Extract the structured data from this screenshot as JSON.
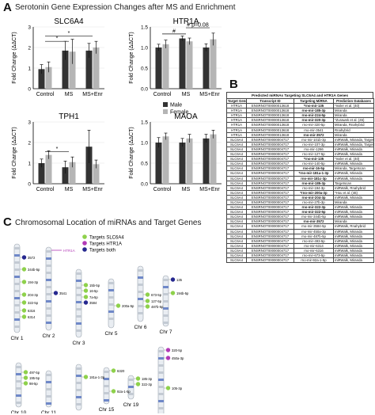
{
  "panel_a": {
    "letter": "A",
    "title": "Serotonin Gene Expression Changes after  MS and Enrichment",
    "ylabel": "Fold Change (ΔΔCT)",
    "legend": {
      "male": "Male",
      "female": "Female"
    },
    "male_color": "#333333",
    "female_color": "#b5b5b5",
    "charts": [
      {
        "title": "SLC6A4",
        "categories": [
          "Control",
          "MS",
          "MS+Enr"
        ],
        "ylim": [
          0,
          3
        ],
        "yticks": [
          "0",
          "1",
          "2",
          "3"
        ],
        "series": [
          {
            "name": "Male",
            "values": [
              0.95,
              1.85,
              1.85
            ],
            "errors": [
              0.22,
              0.45,
              0.35
            ]
          },
          {
            "name": "Female",
            "values": [
              1.05,
              1.8,
              2.0
            ],
            "errors": [
              0.25,
              0.6,
              0.3
            ]
          }
        ],
        "sig": [
          {
            "label": "*",
            "from": 0,
            "to": 1,
            "level": 2.3
          },
          {
            "label": "*",
            "from": 0,
            "to": 2,
            "level": 2.55
          }
        ]
      },
      {
        "title": "HTR1A",
        "categories": [
          "Control",
          "MS",
          "MS+Enr"
        ],
        "ylim": [
          0,
          1.5
        ],
        "yticks": [
          "0.0",
          "0.5",
          "1.0",
          "1.5"
        ],
        "series": [
          {
            "name": "Male",
            "values": [
              1.0,
              1.22,
              1.0
            ],
            "errors": [
              0.08,
              0.06,
              0.09
            ]
          },
          {
            "name": "Female",
            "values": [
              1.08,
              1.15,
              1.2
            ],
            "errors": [
              0.1,
              0.08,
              0.15
            ]
          }
        ],
        "sig": [
          {
            "label": "#",
            "from": 0,
            "to": 1,
            "level": 1.33
          },
          {
            "label": "# p=0.08",
            "from": 1,
            "to": 2,
            "level": 1.48
          }
        ]
      },
      {
        "title": "TPH1",
        "categories": [
          "Control",
          "MS",
          "MS+Enr"
        ],
        "ylim": [
          0,
          3
        ],
        "yticks": [
          "0",
          "1",
          "2",
          "3"
        ],
        "series": [
          {
            "name": "Male",
            "values": [
              1.0,
              0.8,
              1.8
            ],
            "errors": [
              0.2,
              0.3,
              0.8
            ]
          },
          {
            "name": "Female",
            "values": [
              1.4,
              1.05,
              0.95
            ],
            "errors": [
              0.2,
              0.25,
              0.2
            ]
          }
        ],
        "sig": [
          {
            "label": "*",
            "from": 0,
            "to": 1,
            "level": 1.55
          }
        ]
      },
      {
        "title": "MAOA",
        "categories": [
          "Control",
          "MS",
          "MS+Enr"
        ],
        "ylim": [
          0,
          1.5
        ],
        "yticks": [
          "0.0",
          "0.5",
          "1.0",
          "1.5"
        ],
        "series": [
          {
            "name": "Male",
            "values": [
              1.0,
              1.0,
              1.1
            ],
            "errors": [
              0.12,
              0.1,
              0.1
            ]
          },
          {
            "name": "Female",
            "values": [
              1.15,
              1.1,
              1.2
            ],
            "errors": [
              0.08,
              0.1,
              0.1
            ]
          }
        ],
        "sig": []
      }
    ]
  },
  "panel_b": {
    "letter": "B",
    "table_title": "Predicted miRNAs Targeting SLC6A4 and HTR1A Genes",
    "headers": [
      "Target Gene",
      "Transcript ID",
      "Targeting MiRNA",
      "Prediction Databases"
    ],
    "rows": [
      [
        "HTR1A",
        "ENSRNOT00000013618",
        "*rno-mir-135",
        "*Issler et al. (40)"
      ],
      [
        "HTR1A",
        "ENSRNOT00000013618",
        "rno-mir-185-3p",
        "Miranda"
      ],
      [
        "HTR1A",
        "ENSRNOT00000013618",
        "rno-mir-224-5p",
        "Miranda"
      ],
      [
        "HTR1A",
        "ENSRNOT00000013618",
        "rno-mir-320-3p",
        "*Zurawek et al. (45)"
      ],
      [
        "HTR1A",
        "ENSRNOT00000013618",
        "rno-mir-320-5p",
        "Miranda, Rnahybrid"
      ],
      [
        "HTR1A",
        "ENSRNOT00000013618",
        "rno-mir-3541",
        "Rnahybrid"
      ],
      [
        "HTR1A",
        "ENSRNOT00000013618",
        "rno-mir-3572",
        "Miranda"
      ],
      [
        "SLC6A4",
        "ENSRNOT00000004717",
        "rno-mir-101b-3p",
        "miRWalk, Miranda, Targetscan"
      ],
      [
        "SLC6A4",
        "ENSRNOT00000004717",
        "rno-mir-107-3p",
        "miRWalk, Miranda, Targetscan"
      ],
      [
        "SLC6A4",
        "ENSRNOT00000004717",
        "rno-mir-1266",
        "miRWalk, Miranda"
      ],
      [
        "SLC6A4",
        "ENSRNOT00000004717",
        "rno-mir-127-5p",
        "miRWalk, Miranda"
      ],
      [
        "SLC6A4",
        "ENSRNOT00000004717",
        "*rno-mir-135",
        "*Issler et al. (40)"
      ],
      [
        "SLC6A4",
        "ENSRNOT00000004717",
        "rno-mir-140-5p",
        "miRWalk, Miranda"
      ],
      [
        "SLC6A4",
        "ENSRNOT00000004717",
        "rno-mir-16-5p",
        "Miranda, Targetscan"
      ],
      [
        "SLC6A4",
        "ENSRNOT00000004717",
        "*rno-mir-181a-1-3p",
        "miRWalk, Miranda"
      ],
      [
        "SLC6A4",
        "ENSRNOT00000004717",
        "rno-mir-181c-3p",
        "miRWalk, Miranda"
      ],
      [
        "SLC6A4",
        "ENSRNOT00000004717",
        "rno-mir-185-3p",
        "Targetscan"
      ],
      [
        "SLC6A4",
        "ENSRNOT00000004717",
        "rno-mir-194-3p",
        "miRWalk, Rnahybrid"
      ],
      [
        "SLC6A4",
        "ENSRNOT00000004717",
        "*rno-mir-200a-3p",
        "*Hou et al. (46)"
      ],
      [
        "SLC6A4",
        "ENSRNOT00000004717",
        "rno-mir-204-3p",
        "miRWalk, Miranda"
      ],
      [
        "SLC6A4",
        "ENSRNOT00000004717",
        "rno-mir-27b-3p",
        "Miranda"
      ],
      [
        "SLC6A4",
        "ENSRNOT00000004717",
        "rno-mir-322-3p",
        "miRWalk, Miranda"
      ],
      [
        "SLC6A4",
        "ENSRNOT00000004717",
        "rno-mir-322-5p",
        "miRWalk, Miranda"
      ],
      [
        "SLC6A4",
        "ENSRNOT00000004717",
        "rno-mir-344b-5p",
        "miRWalk, Miranda"
      ],
      [
        "SLC6A4",
        "ENSRNOT00000004717",
        "rno-mir-3572",
        "Miranda"
      ],
      [
        "SLC6A4",
        "ENSRNOT00000004717",
        "rno-mir-3584-5p",
        "miRWalk, Rnahybrid"
      ],
      [
        "SLC6A4",
        "ENSRNOT00000004717",
        "rno-mir-450a-3p",
        "miRWalk, Miranda"
      ],
      [
        "SLC6A4",
        "ENSRNOT00000004717",
        "rno-mir-487b-5p",
        "miRWalk, Miranda"
      ],
      [
        "SLC6A4",
        "ENSRNOT00000004717",
        "rno-mir-493-5p",
        "miRWalk, Miranda"
      ],
      [
        "SLC6A4",
        "ENSRNOT00000004717",
        "rno-mir-6314",
        "miRWalk, Miranda"
      ],
      [
        "SLC6A4",
        "ENSRNOT00000004717",
        "rno-mir-6316",
        "miRWalk, Miranda"
      ],
      [
        "SLC6A4",
        "ENSRNOT00000004717",
        "rno-mir-673-5p",
        "miRWalk, Miranda"
      ],
      [
        "SLC6A4",
        "ENSRNOT00000004717",
        "rno-mir-92a-1-5p",
        "miRWalk, Miranda"
      ]
    ]
  },
  "panel_c": {
    "letter": "C",
    "title": "Chromosomal Location of miRNAs and Target Genes",
    "legend": [
      {
        "label": "Targets SLC6A4",
        "color": "#8ed14b"
      },
      {
        "label": "Targets HTR1A",
        "color": "#b23ab7"
      },
      {
        "label": "Targets both",
        "color": "#26288f"
      }
    ],
    "chromosomes": [
      "Chr 1",
      "Chr 2",
      "Chr 3",
      "Chr 5",
      "Chr 6",
      "Chr 7",
      "Chr 10",
      "Chr 11",
      "Chr 13",
      "Chr 15",
      "Chr 19",
      "Chr X"
    ],
    "mirna_labels": [
      "3572",
      "344b-5p",
      "194-3p",
      "204-3p",
      "322-5p",
      "6316",
      "6314",
      "3541",
      "15b-5p",
      "16-5p",
      "7a-5p",
      "3584",
      "200a-5p",
      "673-5p",
      "127-5p",
      "487b-5p",
      "135",
      "194b-5p",
      "497-5p",
      "195-5p",
      "98-5p",
      "181a-1-3p",
      "92a-1-5p",
      "6320",
      "185-3p",
      "322-3p",
      "320-5p",
      "450a-3p",
      "105-3p",
      "HTR1A"
    ]
  }
}
